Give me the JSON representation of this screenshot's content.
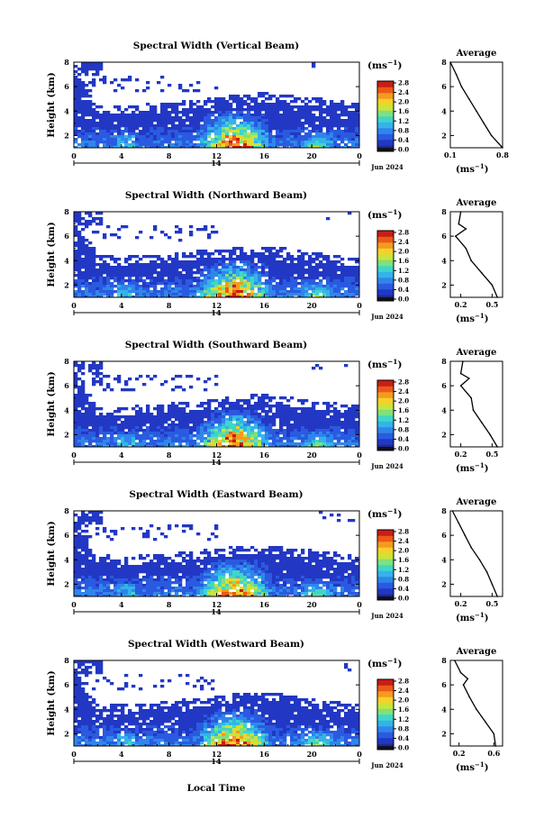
{
  "figure": {
    "xlabel_bottom": "Local Time",
    "colorbar_unit": "(ms",
    "unit_exponent": "−1",
    "average_title": "Average",
    "date_label": "Jun 2024",
    "day_label": "14",
    "ylabel": "Height (km)",
    "x_ticks": [
      "0",
      "4",
      "8",
      "12",
      "16",
      "20",
      "0"
    ],
    "y_ticks": [
      "2",
      "4",
      "6",
      "8"
    ],
    "colorbar_ticks": [
      "0.0",
      "0.4",
      "0.8",
      "1.2",
      "1.6",
      "2.0",
      "2.4",
      "2.8"
    ],
    "colormap": [
      "#1e2a8c",
      "#2238c4",
      "#2a5ae0",
      "#2f86ea",
      "#34b3ea",
      "#3fd6c8",
      "#7fe07e",
      "#c9e43a",
      "#f5d12a",
      "#f59a1f",
      "#ea5a18",
      "#c81e14"
    ]
  },
  "chart_data": [
    {
      "type": "heatmap",
      "title": "Spectral Width (Vertical Beam)",
      "xlabel": "",
      "ylabel": "Height (km)",
      "xlim": [
        0,
        24
      ],
      "ylim": [
        1,
        8
      ],
      "zlim": [
        0,
        2.8
      ],
      "echo_top_km": [
        7.4,
        4.1,
        4.2,
        4.3,
        4.4,
        4.6,
        4.8,
        5.1,
        5.2,
        5.0,
        4.8,
        4.6,
        4.3
      ],
      "peak_time_h": 13.5,
      "average_profile": {
        "title": "Average",
        "xlim": [
          0.1,
          0.8
        ],
        "x_ticks": [
          "0.1",
          "0.8"
        ],
        "height_km": [
          8,
          7,
          6,
          5,
          4,
          3,
          2,
          1
        ],
        "width_ms": [
          0.1,
          0.18,
          0.25,
          0.35,
          0.45,
          0.55,
          0.65,
          0.8
        ]
      }
    },
    {
      "type": "heatmap",
      "title": "Spectral Width (Northward Beam)",
      "xlabel": "",
      "ylabel": "Height (km)",
      "xlim": [
        0,
        24
      ],
      "ylim": [
        1,
        8
      ],
      "zlim": [
        0,
        2.8
      ],
      "echo_top_km": [
        7.6,
        4.2,
        4.0,
        4.2,
        4.3,
        4.5,
        4.6,
        4.8,
        4.9,
        4.7,
        4.4,
        4.1,
        3.9
      ],
      "peak_time_h": 13.5,
      "average_profile": {
        "title": "Average",
        "xlim": [
          0.1,
          0.6
        ],
        "x_ticks": [
          "0.2",
          "0.5"
        ],
        "height_km": [
          8,
          7,
          6.6,
          6,
          5,
          4,
          3,
          2,
          1
        ],
        "width_ms": [
          0.2,
          0.18,
          0.25,
          0.15,
          0.25,
          0.3,
          0.4,
          0.5,
          0.55
        ]
      }
    },
    {
      "type": "heatmap",
      "title": "Spectral Width (Southward Beam)",
      "xlabel": "",
      "ylabel": "Height (km)",
      "xlim": [
        0,
        24
      ],
      "ylim": [
        1,
        8
      ],
      "zlim": [
        0,
        2.8
      ],
      "echo_top_km": [
        7.5,
        4.0,
        4.0,
        4.1,
        4.3,
        4.4,
        4.6,
        4.9,
        5.0,
        4.8,
        4.5,
        4.3,
        4.1
      ],
      "peak_time_h": 13.5,
      "average_profile": {
        "title": "Average",
        "xlim": [
          0.1,
          0.6
        ],
        "x_ticks": [
          "0.2",
          "0.5"
        ],
        "height_km": [
          8,
          7,
          6.6,
          6,
          5,
          4,
          3,
          2,
          1
        ],
        "width_ms": [
          0.22,
          0.2,
          0.28,
          0.2,
          0.3,
          0.32,
          0.4,
          0.48,
          0.55
        ]
      }
    },
    {
      "type": "heatmap",
      "title": "Spectral Width (Eastward Beam)",
      "xlabel": "",
      "ylabel": "Height (km)",
      "xlim": [
        0,
        24
      ],
      "ylim": [
        1,
        8
      ],
      "zlim": [
        0,
        2.8
      ],
      "echo_top_km": [
        7.4,
        4.1,
        4.0,
        4.1,
        4.2,
        4.4,
        4.6,
        4.8,
        4.9,
        4.7,
        4.5,
        4.3,
        4.1
      ],
      "peak_time_h": 13.5,
      "average_profile": {
        "title": "Average",
        "xlim": [
          0.1,
          0.6
        ],
        "x_ticks": [
          "0.2",
          "0.5"
        ],
        "height_km": [
          8,
          7,
          6,
          5,
          4,
          3,
          2,
          1
        ],
        "width_ms": [
          0.12,
          0.18,
          0.24,
          0.3,
          0.38,
          0.45,
          0.5,
          0.55
        ]
      }
    },
    {
      "type": "heatmap",
      "title": "Spectral Width (Westward Beam)",
      "xlabel": "Local Time",
      "ylabel": "Height (km)",
      "xlim": [
        0,
        24
      ],
      "ylim": [
        1,
        8
      ],
      "zlim": [
        0,
        2.8
      ],
      "echo_top_km": [
        7.5,
        4.0,
        4.1,
        4.2,
        4.4,
        4.6,
        4.8,
        5.0,
        5.1,
        4.9,
        4.6,
        4.3,
        4.1
      ],
      "peak_time_h": 13.5,
      "average_profile": {
        "title": "Average",
        "xlim": [
          0.1,
          0.7
        ],
        "x_ticks": [
          "0.2",
          "0.6"
        ],
        "height_km": [
          8,
          7,
          6.5,
          6,
          5,
          4,
          3,
          2,
          1
        ],
        "width_ms": [
          0.15,
          0.22,
          0.3,
          0.25,
          0.32,
          0.4,
          0.5,
          0.6,
          0.62
        ]
      }
    }
  ]
}
